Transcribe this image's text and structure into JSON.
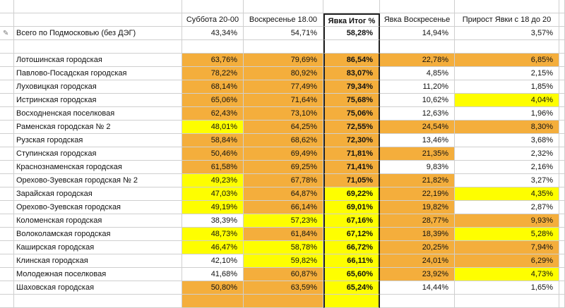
{
  "columns": {
    "sat": "Суббота 20-00",
    "sun18": "Воскресенье 18.00",
    "total": "Явка Итог %",
    "sunday": "Явка Воскресенье",
    "growth": "Прирост Явки с 18 до 20"
  },
  "summary": {
    "name": "Всего по Подмосковью (без ДЭГ)",
    "sat": "43,34%",
    "sun18": "54,71%",
    "total": "58,28%",
    "sunday": "14,94%",
    "growth": "3,57%"
  },
  "colors": {
    "orange": "#f4ae3c",
    "yellow": "#fefe00",
    "none": "#ffffff"
  },
  "rows": [
    {
      "name": "Лотошинская городская",
      "sat": "63,76%",
      "sun18": "79,69%",
      "total": "86,54%",
      "sunday": "22,78%",
      "growth": "6,85%",
      "c": [
        "o",
        "o",
        "o",
        "o",
        "o"
      ]
    },
    {
      "name": "Павлово-Посадская городская",
      "sat": "78,22%",
      "sun18": "80,92%",
      "total": "83,07%",
      "sunday": "4,85%",
      "growth": "2,15%",
      "c": [
        "o",
        "o",
        "o",
        "n",
        "n"
      ]
    },
    {
      "name": "Луховицкая городская",
      "sat": "68,14%",
      "sun18": "77,49%",
      "total": "79,34%",
      "sunday": "11,20%",
      "growth": "1,85%",
      "c": [
        "o",
        "o",
        "o",
        "n",
        "n"
      ]
    },
    {
      "name": "Истринская городская",
      "sat": "65,06%",
      "sun18": "71,64%",
      "total": "75,68%",
      "sunday": "10,62%",
      "growth": "4,04%",
      "c": [
        "o",
        "o",
        "o",
        "n",
        "y"
      ]
    },
    {
      "name": "Восходненская поселковая",
      "sat": "62,43%",
      "sun18": "73,10%",
      "total": "75,06%",
      "sunday": "12,63%",
      "growth": "1,96%",
      "c": [
        "o",
        "o",
        "o",
        "n",
        "n"
      ]
    },
    {
      "name": "Раменская городская № 2",
      "sat": "48,01%",
      "sun18": "64,25%",
      "total": "72,55%",
      "sunday": "24,54%",
      "growth": "8,30%",
      "c": [
        "y",
        "o",
        "o",
        "o",
        "o"
      ]
    },
    {
      "name": "Рузская городская",
      "sat": "58,84%",
      "sun18": "68,62%",
      "total": "72,30%",
      "sunday": "13,46%",
      "growth": "3,68%",
      "c": [
        "o",
        "o",
        "o",
        "n",
        "n"
      ]
    },
    {
      "name": "Ступинская городская",
      "sat": "50,46%",
      "sun18": "69,49%",
      "total": "71,81%",
      "sunday": "21,35%",
      "growth": "2,32%",
      "c": [
        "o",
        "o",
        "o",
        "o",
        "n"
      ]
    },
    {
      "name": "Краснознаменская городская",
      "sat": "61,58%",
      "sun18": "69,25%",
      "total": "71,41%",
      "sunday": "9,83%",
      "growth": "2,16%",
      "c": [
        "o",
        "o",
        "o",
        "n",
        "n"
      ]
    },
    {
      "name": "Орехово-Зуевская городская № 2",
      "sat": "49,23%",
      "sun18": "67,78%",
      "total": "71,05%",
      "sunday": "21,82%",
      "growth": "3,27%",
      "c": [
        "y",
        "o",
        "o",
        "o",
        "n"
      ]
    },
    {
      "name": "Зарайская городская",
      "sat": "47,03%",
      "sun18": "64,87%",
      "total": "69,22%",
      "sunday": "22,19%",
      "growth": "4,35%",
      "c": [
        "y",
        "o",
        "y",
        "o",
        "y"
      ]
    },
    {
      "name": "Орехово-Зуевская городская",
      "sat": "49,19%",
      "sun18": "66,14%",
      "total": "69,01%",
      "sunday": "19,82%",
      "growth": "2,87%",
      "c": [
        "y",
        "o",
        "y",
        "o",
        "n"
      ]
    },
    {
      "name": "Коломенская городская",
      "sat": "38,39%",
      "sun18": "57,23%",
      "total": "67,16%",
      "sunday": "28,77%",
      "growth": "9,93%",
      "c": [
        "n",
        "y",
        "y",
        "o",
        "o"
      ]
    },
    {
      "name": "Волоколамская городская",
      "sat": "48,73%",
      "sun18": "61,84%",
      "total": "67,12%",
      "sunday": "18,39%",
      "growth": "5,28%",
      "c": [
        "y",
        "o",
        "y",
        "o",
        "y"
      ]
    },
    {
      "name": "Каширская городская",
      "sat": "46,47%",
      "sun18": "58,78%",
      "total": "66,72%",
      "sunday": "20,25%",
      "growth": "7,94%",
      "c": [
        "y",
        "y",
        "y",
        "o",
        "o"
      ]
    },
    {
      "name": "Клинская городская",
      "sat": "42,10%",
      "sun18": "59,82%",
      "total": "66,11%",
      "sunday": "24,01%",
      "growth": "6,29%",
      "c": [
        "n",
        "y",
        "y",
        "o",
        "o"
      ]
    },
    {
      "name": "Молодежная поселковая",
      "sat": "41,68%",
      "sun18": "60,87%",
      "total": "65,60%",
      "sunday": "23,92%",
      "growth": "4,73%",
      "c": [
        "n",
        "o",
        "y",
        "o",
        "y"
      ]
    },
    {
      "name": "Шаховская городская",
      "sat": "50,80%",
      "sun18": "63,59%",
      "total": "65,24%",
      "sunday": "14,44%",
      "growth": "1,65%",
      "c": [
        "o",
        "o",
        "y",
        "n",
        "n"
      ]
    }
  ]
}
